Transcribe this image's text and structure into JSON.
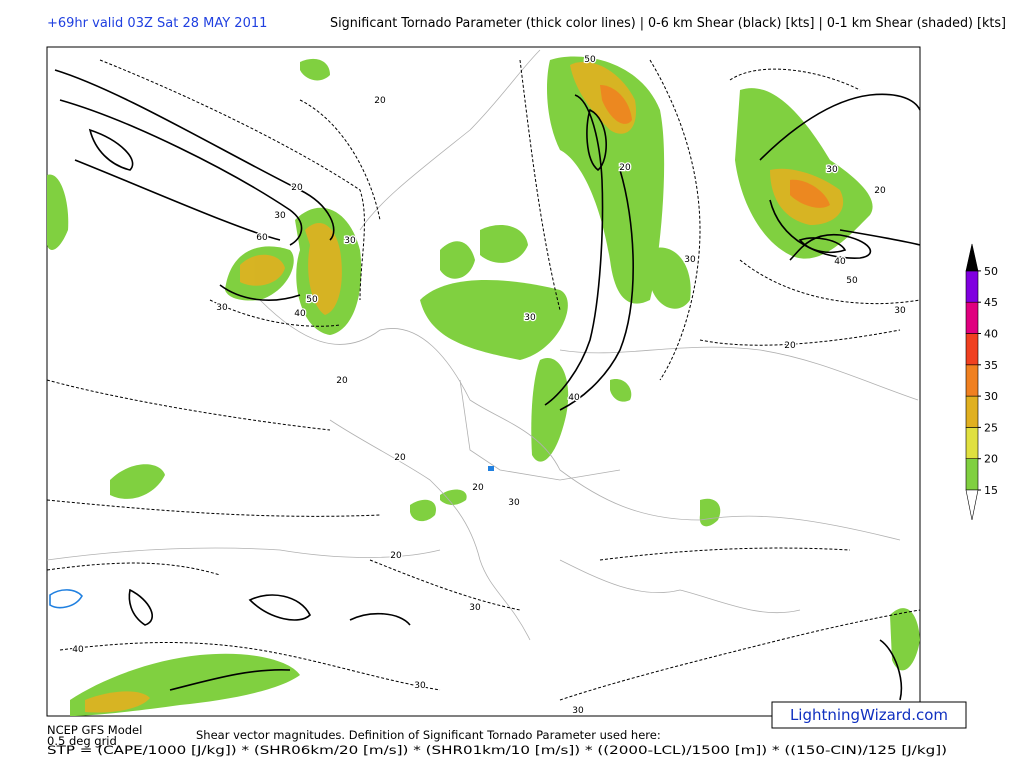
{
  "header": {
    "valid_time": "+69hr valid 03Z Sat 28 MAY 2011",
    "title": "Significant Tornado Parameter (thick color lines) | 0-6 km Shear (black) [kts] | 0-1 km Shear (shaded) [kts]"
  },
  "colorbar": {
    "levels": [
      15,
      20,
      25,
      30,
      35,
      40,
      45,
      50
    ],
    "colors": [
      "#80d040",
      "#e0e040",
      "#e0b020",
      "#f08020",
      "#f04020",
      "#e0007f",
      "#8000e0"
    ],
    "over_color": "#000000",
    "under_color": "#ffffff"
  },
  "contour_labels": [
    20,
    30,
    60,
    50,
    40,
    30,
    30,
    20,
    50,
    20,
    40,
    30,
    20,
    20,
    20,
    20,
    20,
    30,
    40,
    50,
    30,
    20,
    30,
    30,
    30,
    40,
    30,
    30
  ],
  "footer": {
    "model": "NCEP GFS Model",
    "grid": "0.5 deg grid",
    "definition": "Shear vector magnitudes. Definition of Significant Tornado Parameter used here:",
    "formula": "STP = (CAPE/1000 [J/kg]) * (SHR06km/20 [m/s]) * (SHR01km/10 [m/s]) * ((2000-LCL)/1500 [m]) * ((150-CIN)/125 [J/kg])"
  },
  "watermark": "LightningWizard.com"
}
